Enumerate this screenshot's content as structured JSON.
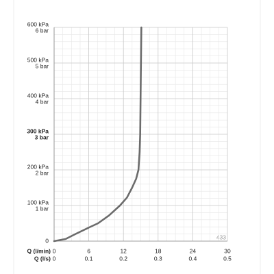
{
  "chart_data": {
    "type": "line",
    "x_axis_labels": [
      "Q (l/min)",
      "Q (l/s)"
    ],
    "xlim": [
      0,
      30
    ],
    "xticks": [
      0,
      6,
      12,
      18,
      24,
      30
    ],
    "x_secondary_ticks": [
      0,
      0.1,
      0.2,
      0.3,
      0.4,
      0.5
    ],
    "ylim": [
      0,
      600
    ],
    "yticks": [
      0,
      {
        "value": 100,
        "label": "100 kPa"
      },
      {
        "value": 200,
        "label": "200 kPa"
      },
      {
        "value": 300,
        "label": "300 kPa"
      },
      {
        "value": 400,
        "label": "400 kPa"
      },
      {
        "value": 500,
        "label": "500 kPa"
      },
      {
        "value": 600,
        "label": "600 kPa"
      }
    ],
    "ytick_sublabels": [
      null,
      "1 bar",
      "2 bar",
      "3 bar",
      "4 bar",
      "5 bar",
      "6 bar"
    ],
    "bold_ytick": 300,
    "grid": true,
    "minor_grid": {
      "x": 4,
      "y": 5
    },
    "annotation": "433",
    "series": [
      {
        "color": "#6b6b6b",
        "x": [
          0,
          2,
          3.7,
          6,
          7.6,
          9.5,
          11.4,
          12.6,
          13.5,
          14.2,
          14.6,
          14.8,
          14.9,
          15,
          15.1
        ],
        "values": [
          0,
          6,
          20,
          38,
          50,
          72,
          100,
          122,
          150,
          175,
          200,
          250,
          300,
          450,
          600
        ]
      }
    ]
  }
}
